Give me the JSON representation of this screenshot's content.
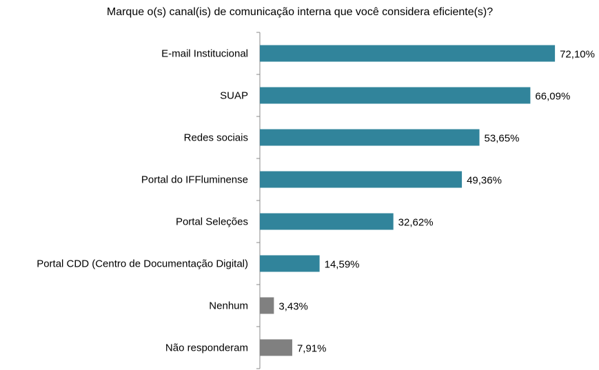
{
  "chart_data": {
    "type": "barh",
    "title": "Marque o(s) canal(is) de comunicação interna que você considera eficiente(s)?",
    "categories": [
      "E-mail Institucional",
      "SUAP",
      "Redes sociais",
      "Portal do IFFluminense",
      "Portal Seleções",
      "Portal CDD (Centro de Documentação Digital)",
      "Nenhum",
      "Não responderam"
    ],
    "values": [
      72.1,
      66.09,
      53.65,
      49.36,
      32.62,
      14.59,
      3.43,
      7.91
    ],
    "value_labels": [
      "72,10%",
      "66,09%",
      "53,65%",
      "49,36%",
      "32,62%",
      "14,59%",
      "3,43%",
      "7,91%"
    ],
    "colors": [
      "#31849b",
      "#31849b",
      "#31849b",
      "#31849b",
      "#31849b",
      "#31849b",
      "#808080",
      "#808080"
    ],
    "xlim": [
      0,
      80
    ]
  }
}
